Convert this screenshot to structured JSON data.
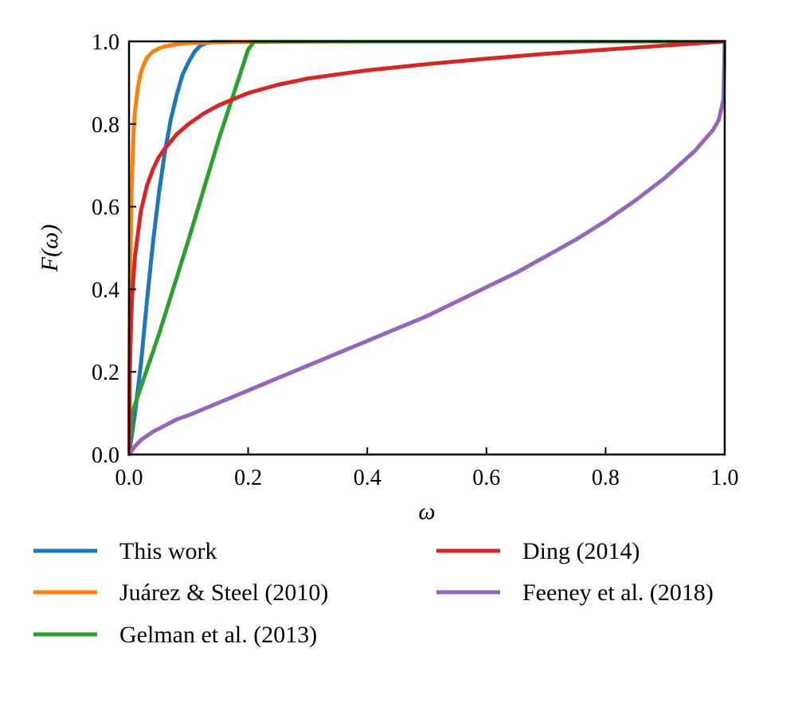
{
  "chart_data": {
    "type": "line",
    "title": "",
    "xlabel": "ω",
    "ylabel": "F(ω)",
    "xlim": [
      0,
      1
    ],
    "ylim": [
      0,
      1
    ],
    "xticks": [
      "0.0",
      "0.2",
      "0.4",
      "0.6",
      "0.8",
      "1.0"
    ],
    "yticks": [
      "0.0",
      "0.2",
      "0.4",
      "0.6",
      "0.8",
      "1.0"
    ],
    "grid": false,
    "legend_position": "bottom, below plot, two columns",
    "series": [
      {
        "name": "This work",
        "color": "#1f77b4",
        "x": [
          0,
          0.005,
          0.01,
          0.02,
          0.03,
          0.04,
          0.05,
          0.06,
          0.07,
          0.08,
          0.09,
          0.1,
          0.11,
          0.12,
          0.13,
          0.14,
          0.15,
          0.2,
          0.4,
          0.6,
          0.8,
          1.0
        ],
        "y": [
          0,
          0.05,
          0.1,
          0.22,
          0.37,
          0.51,
          0.63,
          0.73,
          0.81,
          0.87,
          0.92,
          0.95,
          0.975,
          0.99,
          0.996,
          0.999,
          1.0,
          1.0,
          1.0,
          1.0,
          1.0,
          1.0
        ]
      },
      {
        "name": "Juárez & Steel (2010)",
        "color": "#ff7f0e",
        "x": [
          0,
          0.001,
          0.002,
          0.004,
          0.006,
          0.008,
          0.01,
          0.015,
          0.02,
          0.025,
          0.03,
          0.04,
          0.05,
          0.06,
          0.08,
          0.1,
          0.15,
          0.2,
          0.4,
          0.6,
          0.8,
          1.0
        ],
        "y": [
          0,
          0.3,
          0.45,
          0.62,
          0.72,
          0.79,
          0.83,
          0.89,
          0.925,
          0.945,
          0.96,
          0.975,
          0.983,
          0.988,
          0.993,
          0.996,
          0.998,
          0.999,
          1.0,
          1.0,
          1.0,
          1.0
        ]
      },
      {
        "name": "Gelman et al. (2013)",
        "color": "#2ca02c",
        "x": [
          0,
          0.005,
          0.05,
          0.1,
          0.15,
          0.2,
          0.21,
          0.4,
          0.6,
          0.8,
          1.0
        ],
        "y": [
          0,
          0.1,
          0.29,
          0.52,
          0.76,
          0.98,
          1.0,
          1.0,
          1.0,
          1.0,
          1.0
        ]
      },
      {
        "name": "Ding (2014)",
        "color": "#d62728",
        "x": [
          0,
          0.001,
          0.003,
          0.005,
          0.01,
          0.02,
          0.03,
          0.04,
          0.05,
          0.06,
          0.08,
          0.1,
          0.125,
          0.15,
          0.2,
          0.25,
          0.3,
          0.4,
          0.5,
          0.6,
          0.7,
          0.8,
          0.9,
          0.95,
          1.0
        ],
        "y": [
          0,
          0.18,
          0.3,
          0.38,
          0.48,
          0.59,
          0.65,
          0.69,
          0.72,
          0.74,
          0.775,
          0.8,
          0.825,
          0.845,
          0.875,
          0.895,
          0.91,
          0.93,
          0.945,
          0.958,
          0.97,
          0.98,
          0.99,
          0.995,
          1.0
        ]
      },
      {
        "name": "Feeney et al. (2018)",
        "color": "#9467bd",
        "x": [
          0,
          0.005,
          0.01,
          0.02,
          0.04,
          0.06,
          0.08,
          0.1,
          0.15,
          0.2,
          0.25,
          0.3,
          0.35,
          0.4,
          0.45,
          0.5,
          0.55,
          0.6,
          0.65,
          0.7,
          0.75,
          0.8,
          0.85,
          0.9,
          0.95,
          0.98,
          0.99,
          0.998,
          1.0
        ],
        "y": [
          0,
          0.01,
          0.02,
          0.035,
          0.055,
          0.07,
          0.085,
          0.095,
          0.125,
          0.155,
          0.185,
          0.215,
          0.245,
          0.275,
          0.305,
          0.335,
          0.37,
          0.405,
          0.44,
          0.48,
          0.52,
          0.565,
          0.615,
          0.67,
          0.735,
          0.785,
          0.81,
          0.86,
          1.0
        ]
      }
    ]
  }
}
